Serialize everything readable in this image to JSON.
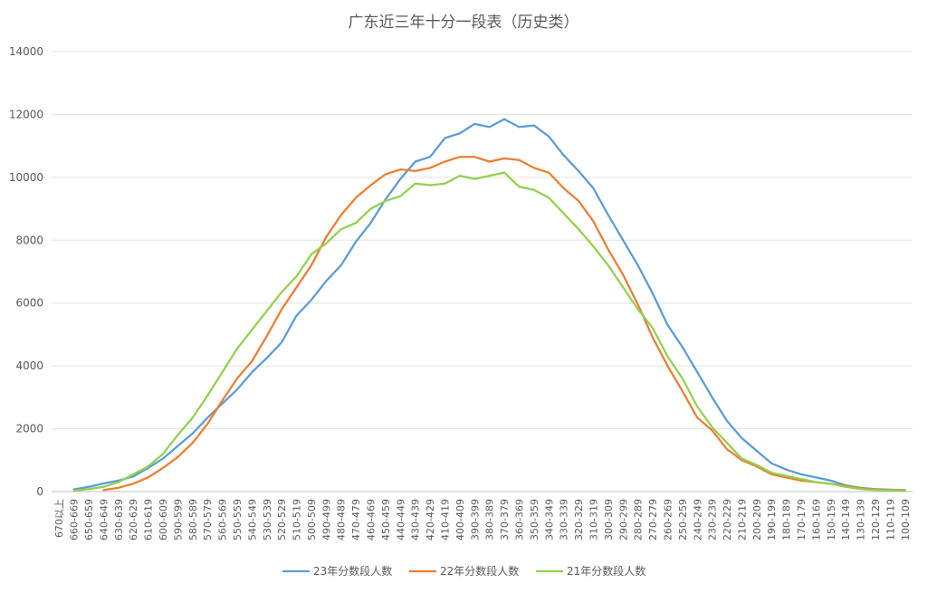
{
  "chart_data": {
    "type": "line",
    "title": "广东近三年十分一段表（历史类）",
    "xlabel": "",
    "ylabel": "",
    "ylim": [
      0,
      14000
    ],
    "yticks": [
      0,
      2000,
      4000,
      6000,
      8000,
      10000,
      12000,
      14000
    ],
    "grid": "horizontal",
    "legend_position": "bottom",
    "categories": [
      "670以上",
      "660-669",
      "650-659",
      "640-649",
      "630-639",
      "620-629",
      "610-619",
      "600-609",
      "590-599",
      "580-589",
      "570-579",
      "560-569",
      "550-559",
      "540-549",
      "530-539",
      "520-529",
      "510-519",
      "500-509",
      "490-499",
      "480-489",
      "470-479",
      "460-469",
      "450-459",
      "440-449",
      "430-439",
      "420-429",
      "410-419",
      "400-409",
      "390-399",
      "380-389",
      "370-379",
      "360-369",
      "350-359",
      "340-349",
      "330-339",
      "320-329",
      "310-319",
      "300-309",
      "290-299",
      "280-289",
      "270-279",
      "260-269",
      "250-259",
      "240-249",
      "230-239",
      "220-229",
      "210-219",
      "200-209",
      "190-199",
      "180-189",
      "170-179",
      "160-169",
      "150-159",
      "140-149",
      "130-139",
      "120-129",
      "110-119",
      "100-109"
    ],
    "series": [
      {
        "name": "23年分数段人数",
        "color": "#5b9bd5",
        "values": [
          null,
          70,
          150,
          260,
          350,
          480,
          750,
          1050,
          1450,
          1850,
          2350,
          2800,
          3250,
          3800,
          4250,
          4750,
          5600,
          6100,
          6700,
          7200,
          7950,
          8550,
          9300,
          9950,
          10500,
          10650,
          11250,
          11400,
          11700,
          11600,
          11850,
          11600,
          11650,
          11300,
          10700,
          10200,
          9650,
          8800,
          8000,
          7200,
          6300,
          5300,
          4600,
          3800,
          3000,
          2250,
          1700,
          1300,
          900,
          700,
          550,
          450,
          350,
          200,
          120,
          80,
          60,
          50
        ]
      },
      {
        "name": "22年分数段人数",
        "color": "#ed7d31",
        "values": [
          null,
          null,
          null,
          50,
          120,
          250,
          450,
          750,
          1100,
          1550,
          2150,
          2900,
          3600,
          4150,
          4950,
          5800,
          6500,
          7200,
          8100,
          8800,
          9350,
          9750,
          10100,
          10250,
          10200,
          10300,
          10500,
          10650,
          10650,
          10500,
          10600,
          10550,
          10300,
          10150,
          9650,
          9250,
          8600,
          7700,
          6900,
          5950,
          4900,
          4000,
          3200,
          2350,
          1950,
          1350,
          1000,
          800,
          550,
          450,
          350,
          300,
          250,
          180,
          100,
          70,
          50,
          40
        ]
      },
      {
        "name": "21年分数段人数",
        "color": "#92d050",
        "values": [
          null,
          30,
          80,
          150,
          300,
          550,
          800,
          1200,
          1800,
          2350,
          3050,
          3800,
          4550,
          5150,
          5750,
          6350,
          6850,
          7550,
          7900,
          8350,
          8550,
          9000,
          9250,
          9400,
          9800,
          9750,
          9800,
          10050,
          9950,
          10050,
          10150,
          9700,
          9600,
          9350,
          8850,
          8350,
          7800,
          7200,
          6500,
          5800,
          5200,
          4300,
          3600,
          2700,
          2050,
          1550,
          1050,
          850,
          600,
          500,
          400,
          300,
          250,
          150,
          80,
          50,
          40,
          30
        ]
      }
    ]
  }
}
